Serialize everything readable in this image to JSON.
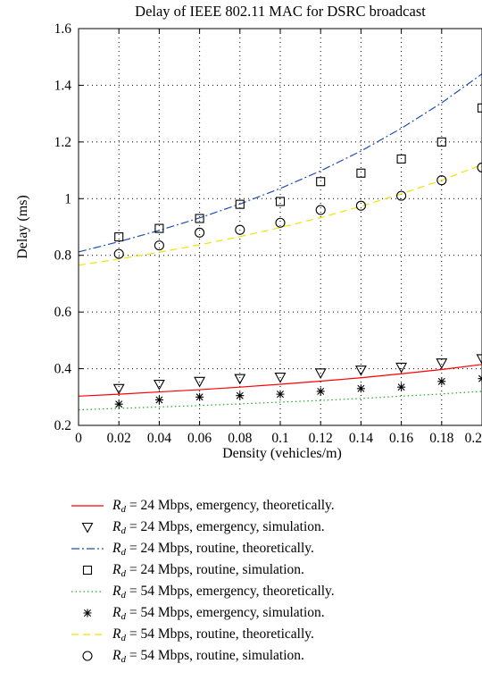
{
  "chart_data": {
    "type": "line",
    "title": "Delay of IEEE 802.11 MAC for DSRC broadcast",
    "xlabel": "Density (vehicles/m)",
    "ylabel": "Delay (ms)",
    "xlim": [
      0,
      0.2
    ],
    "ylim": [
      0.2,
      1.6
    ],
    "xticks": [
      0,
      0.02,
      0.04,
      0.06,
      0.08,
      0.1,
      0.12,
      0.14,
      0.16,
      0.18,
      0.2
    ],
    "xtick_labels": [
      "0",
      "0.02",
      "0.04",
      "0.06",
      "0.08",
      "0.1",
      "0.12",
      "0.14",
      "0.16",
      "0.18",
      "0.2"
    ],
    "yticks": [
      0.2,
      0.4,
      0.6,
      0.8,
      1,
      1.2,
      1.4,
      1.6
    ],
    "ytick_labels": [
      "0.2",
      "0.4",
      "0.6",
      "0.8",
      "1",
      "1.2",
      "1.4",
      "1.6"
    ],
    "grid": true,
    "legend_position": "below",
    "series": [
      {
        "name": "= 24 Mbps, emergency, theoretically.",
        "kind": "line",
        "style": "solid",
        "color": "#ff0000",
        "x": [
          0,
          0.02,
          0.04,
          0.06,
          0.08,
          0.1,
          0.12,
          0.14,
          0.16,
          0.18,
          0.2
        ],
        "y": [
          0.303,
          0.31,
          0.318,
          0.326,
          0.335,
          0.345,
          0.356,
          0.368,
          0.382,
          0.397,
          0.415
        ]
      },
      {
        "name": "= 24 Mbps, emergency, simulation.",
        "kind": "marker",
        "marker": "triangle-down",
        "color": "#000000",
        "x": [
          0.02,
          0.04,
          0.06,
          0.08,
          0.1,
          0.12,
          0.14,
          0.16,
          0.18,
          0.2
        ],
        "y": [
          0.33,
          0.345,
          0.355,
          0.365,
          0.37,
          0.385,
          0.395,
          0.405,
          0.42,
          0.435
        ]
      },
      {
        "name": "= 24 Mbps, routine, theoretically.",
        "kind": "line",
        "style": "dashdot",
        "color": "#1f4fb4",
        "x": [
          0,
          0.02,
          0.04,
          0.06,
          0.08,
          0.1,
          0.12,
          0.14,
          0.16,
          0.18,
          0.2
        ],
        "y": [
          0.812,
          0.848,
          0.888,
          0.932,
          0.981,
          1.036,
          1.098,
          1.168,
          1.248,
          1.338,
          1.44
        ]
      },
      {
        "name": "= 24 Mbps, routine, simulation.",
        "kind": "marker",
        "marker": "square",
        "color": "#000000",
        "x": [
          0.02,
          0.04,
          0.06,
          0.08,
          0.1,
          0.12,
          0.14,
          0.16,
          0.18,
          0.2
        ],
        "y": [
          0.865,
          0.895,
          0.93,
          0.98,
          0.99,
          1.06,
          1.09,
          1.14,
          1.2,
          1.32
        ]
      },
      {
        "name": "= 54 Mbps, emergency, theoretically.",
        "kind": "line",
        "style": "dotted",
        "color": "#22a822",
        "x": [
          0,
          0.02,
          0.04,
          0.06,
          0.08,
          0.1,
          0.12,
          0.14,
          0.16,
          0.18,
          0.2
        ],
        "y": [
          0.255,
          0.26,
          0.265,
          0.27,
          0.276,
          0.282,
          0.288,
          0.295,
          0.303,
          0.311,
          0.32
        ]
      },
      {
        "name": "= 54 Mbps, emergency, simulation.",
        "kind": "marker",
        "marker": "asterisk",
        "color": "#000000",
        "x": [
          0.02,
          0.04,
          0.06,
          0.08,
          0.1,
          0.12,
          0.14,
          0.16,
          0.18,
          0.2
        ],
        "y": [
          0.275,
          0.29,
          0.3,
          0.305,
          0.31,
          0.32,
          0.33,
          0.335,
          0.355,
          0.365
        ]
      },
      {
        "name": "= 54 Mbps, routine, theoretically.",
        "kind": "line",
        "style": "dashed",
        "color": "#f2e200",
        "x": [
          0,
          0.02,
          0.04,
          0.06,
          0.08,
          0.1,
          0.12,
          0.14,
          0.16,
          0.18,
          0.2
        ],
        "y": [
          0.765,
          0.787,
          0.811,
          0.837,
          0.866,
          0.898,
          0.933,
          0.973,
          1.017,
          1.065,
          1.12
        ]
      },
      {
        "name": "= 54 Mbps, routine, simulation.",
        "kind": "marker",
        "marker": "circle",
        "color": "#000000",
        "x": [
          0.02,
          0.04,
          0.06,
          0.08,
          0.1,
          0.12,
          0.14,
          0.16,
          0.18,
          0.2
        ],
        "y": [
          0.805,
          0.835,
          0.88,
          0.89,
          0.915,
          0.96,
          0.975,
          1.01,
          1.065,
          1.11
        ]
      }
    ]
  },
  "legend": {
    "symbol": "R",
    "subscript": "d"
  }
}
